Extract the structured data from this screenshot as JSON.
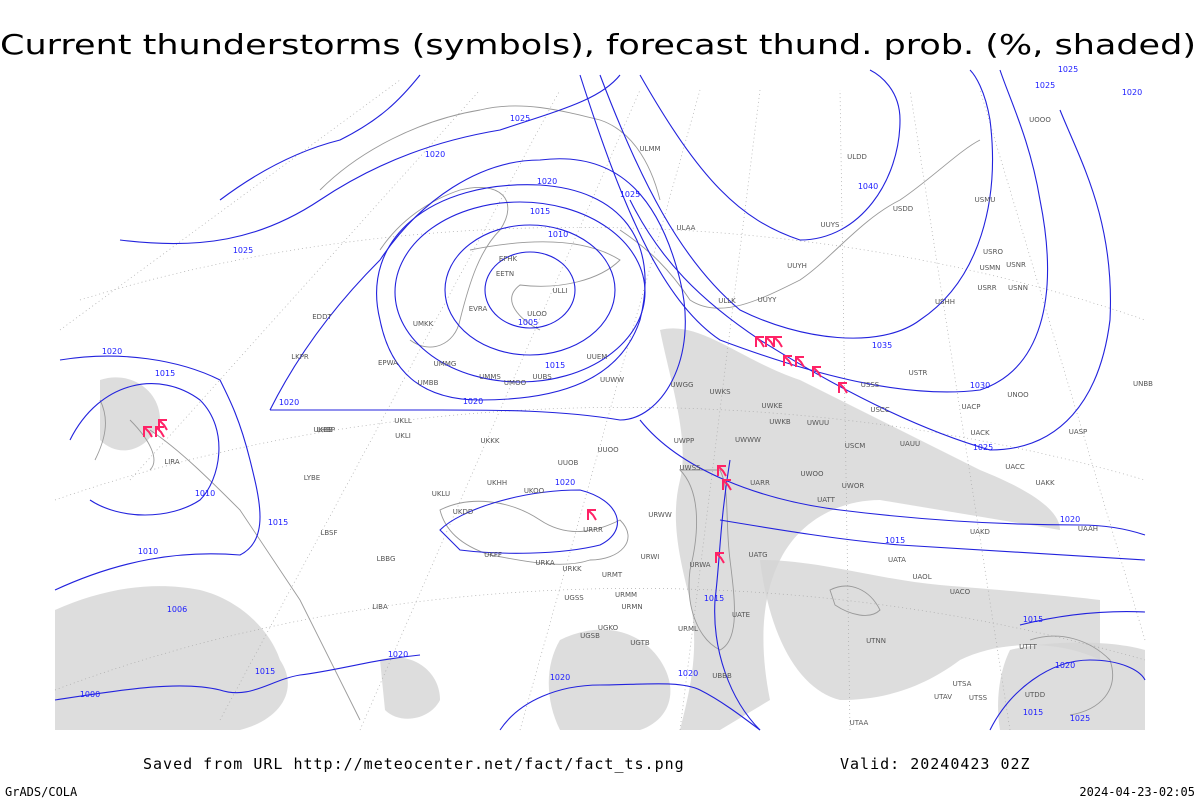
{
  "title": "Current thunderstorms (symbols), forecast thund. prob. (%, shaded)",
  "footer": {
    "source": "Saved from URL http://meteocenter.net/fact/fact_ts.png",
    "valid": "Valid: 20240423 02Z",
    "credit": "GrADS/COLA",
    "timestamp": "2024-04-23-02:05"
  },
  "isobar_labels": [
    1025,
    1020,
    1020,
    1025,
    1015,
    1010,
    1005,
    1015,
    1020,
    1025,
    1020,
    1015,
    1020,
    1040,
    1035,
    1030,
    1025,
    1020,
    1015,
    1020,
    1010,
    1015,
    1010,
    1006,
    1020,
    1015,
    1000,
    1020,
    1020,
    1015,
    1015,
    1020,
    1025,
    1015,
    1025,
    1020,
    1025
  ],
  "stations": [
    "EFHK",
    "EETN",
    "ULLI",
    "EVRA",
    "ULOO",
    "UMKK",
    "EDDT",
    "EPWA",
    "UMMG",
    "UMBB",
    "UMMS",
    "UMOO",
    "UUBS",
    "UUEM",
    "UUWW",
    "UWGG",
    "UWKS",
    "UWKE",
    "UWKB",
    "UWUU",
    "UWWW",
    "UWPP",
    "UKLL",
    "UKLI",
    "UKBB",
    "UKKK",
    "UUOB",
    "UUOO",
    "UWSS",
    "UARR",
    "UWOO",
    "USCM",
    "UAUU",
    "UWOR",
    "UATT",
    "UAKK",
    "UACC",
    "UASP",
    "USCC",
    "UACK",
    "UACP",
    "UNOO",
    "USTR",
    "USSS",
    "ULLK",
    "UUYY",
    "UUYH",
    "UUYS",
    "ULAA",
    "ULMM",
    "ULDD",
    "USDD",
    "USMU",
    "USRO",
    "USMN",
    "USNR",
    "USRR",
    "USNN",
    "USHH",
    "UOOO",
    "UNBB",
    "UAAH",
    "UAKD",
    "UATG",
    "UATA",
    "UAOL",
    "UACO",
    "URRR",
    "URWW",
    "UKHH",
    "UKOO",
    "UKDD",
    "UKFF",
    "URKA",
    "URKK",
    "URMT",
    "URMM",
    "URMN",
    "UGSS",
    "URWI",
    "URWA",
    "URML",
    "UGKO",
    "UGSB",
    "UGTB",
    "UBBB",
    "UATE",
    "UTNN",
    "UTAA",
    "UTAV",
    "UTSA",
    "UTSS",
    "UTDD",
    "UTTT",
    "LIRA",
    "LYBE",
    "LBSF",
    "LBBG",
    "LIBA",
    "LKPR",
    "LHBP",
    "UKLU"
  ]
}
